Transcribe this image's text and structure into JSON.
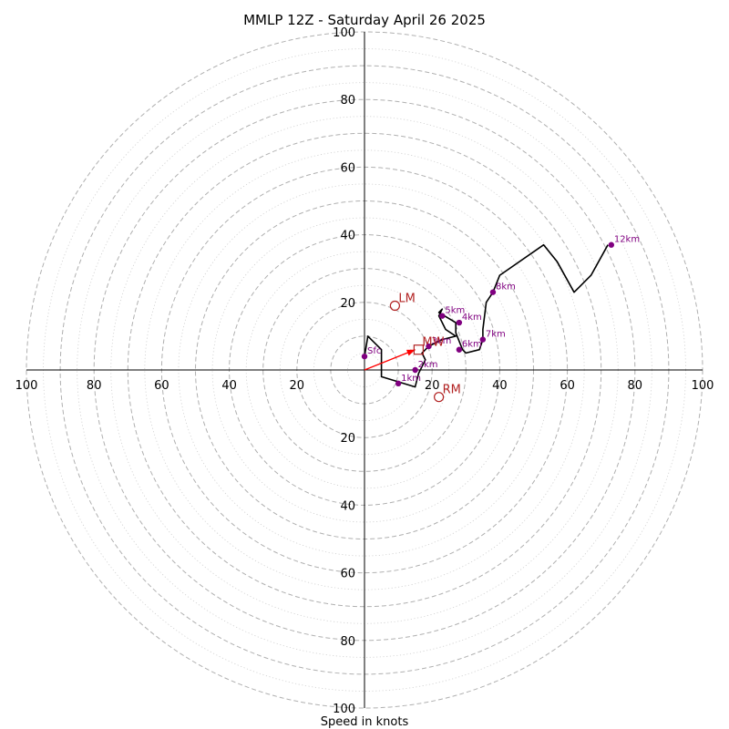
{
  "chart_data": {
    "type": "hodograph",
    "title": "MMLP 12Z - Saturday April 26 2025",
    "xlabel": "Speed in knots",
    "range": 100,
    "rings_dashed": [
      10,
      30,
      50,
      70,
      90
    ],
    "rings_dashed_labeled": [
      20,
      40,
      60,
      80,
      100
    ],
    "rings_dotted_at": [
      5,
      15,
      25,
      35,
      45,
      55,
      65,
      75,
      85,
      95
    ],
    "tick_labels": [
      "20",
      "40",
      "60",
      "80",
      "100"
    ],
    "hodograph_line": [
      [
        0,
        4
      ],
      [
        1,
        10
      ],
      [
        5,
        6
      ],
      [
        5,
        -2
      ],
      [
        15,
        -5
      ],
      [
        16,
        -1
      ],
      [
        17,
        1
      ],
      [
        18,
        3
      ],
      [
        17,
        5
      ],
      [
        19,
        7
      ],
      [
        23,
        9
      ],
      [
        27,
        10
      ],
      [
        24,
        12
      ],
      [
        22,
        16
      ],
      [
        23,
        18
      ],
      [
        22,
        17
      ],
      [
        27,
        14
      ],
      [
        27,
        11
      ],
      [
        29,
        6
      ],
      [
        30,
        5
      ],
      [
        34,
        6
      ],
      [
        35,
        9
      ],
      [
        35,
        12
      ],
      [
        36,
        20
      ],
      [
        38,
        23
      ],
      [
        40,
        28
      ],
      [
        53,
        37
      ],
      [
        57,
        32
      ],
      [
        62,
        23
      ],
      [
        67,
        28
      ],
      [
        72,
        37
      ]
    ],
    "height_points": [
      {
        "label": "Sfc",
        "u": 0,
        "v": 4
      },
      {
        "label": "1km",
        "u": 10,
        "v": -4
      },
      {
        "label": "2km",
        "u": 15,
        "v": 0
      },
      {
        "label": "3km",
        "u": 19,
        "v": 7
      },
      {
        "label": "4km",
        "u": 28,
        "v": 14
      },
      {
        "label": "5km",
        "u": 23,
        "v": 16
      },
      {
        "label": "6km",
        "u": 28,
        "v": 6
      },
      {
        "label": "7km",
        "u": 35,
        "v": 9
      },
      {
        "label": "8km",
        "u": 38,
        "v": 23
      },
      {
        "label": "12km",
        "u": 73,
        "v": 37
      }
    ],
    "motion_markers": [
      {
        "label": "LM",
        "u": 9,
        "v": 19,
        "shape": "circle"
      },
      {
        "label": "RM",
        "u": 22,
        "v": -8,
        "shape": "circle"
      },
      {
        "label": "MW",
        "u": 16,
        "v": 6,
        "shape": "square"
      }
    ],
    "mean_vector": {
      "u": 15,
      "v": 6
    },
    "colors": {
      "hodo_line": "#000000",
      "height_points": "#800080",
      "motion": "#b22222",
      "vector": "#ff0000",
      "grid": "#b0b0b0"
    }
  }
}
